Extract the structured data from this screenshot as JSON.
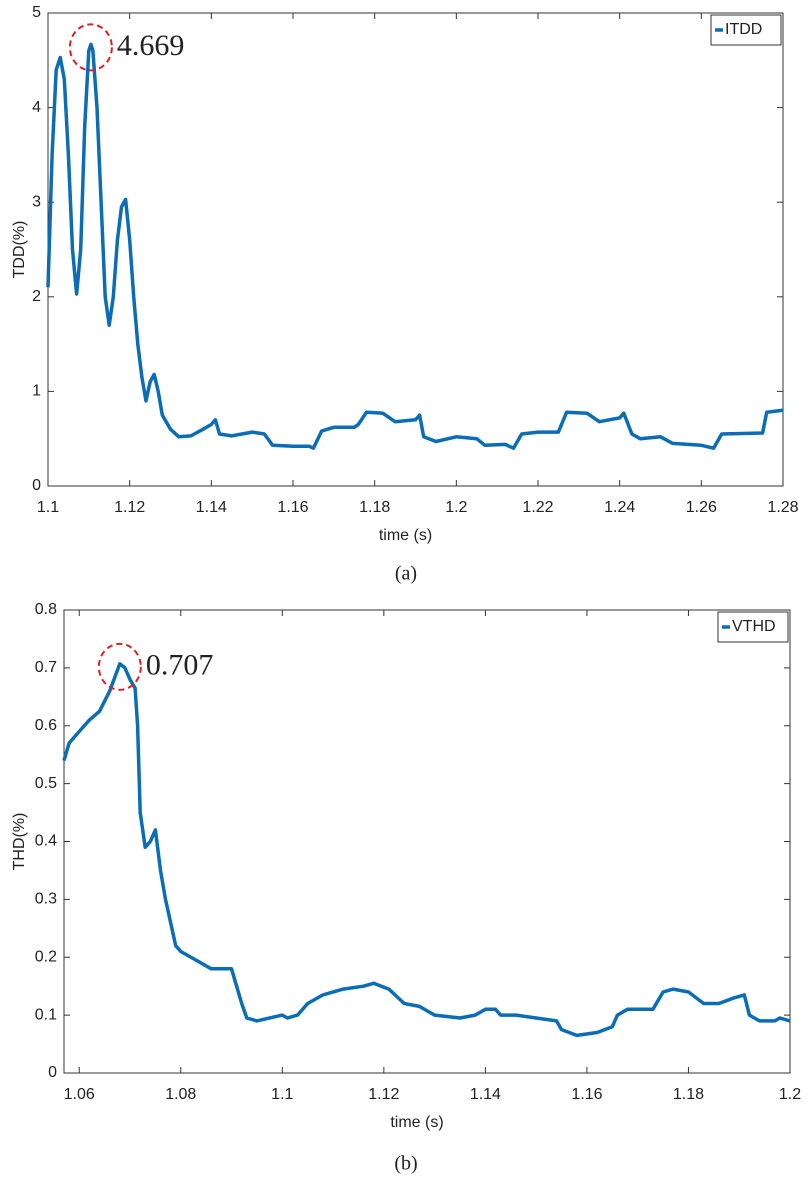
{
  "chart_data": [
    {
      "type": "line",
      "xlabel": "time (s)",
      "ylabel": "TDD(%)",
      "caption": "(a)",
      "annotation": "4.669",
      "legend": "upper right",
      "grid": false,
      "xlim": [
        1.1,
        1.28
      ],
      "xticks": [
        1.1,
        1.12,
        1.14,
        1.16,
        1.18,
        1.2,
        1.22,
        1.24,
        1.26,
        1.28
      ],
      "ylim": [
        0,
        5
      ],
      "yticks": [
        0,
        1,
        2,
        3,
        4,
        5
      ],
      "x": [
        1.1,
        1.101,
        1.102,
        1.103,
        1.104,
        1.105,
        1.106,
        1.107,
        1.108,
        1.109,
        1.11,
        1.1105,
        1.111,
        1.112,
        1.113,
        1.114,
        1.115,
        1.116,
        1.117,
        1.118,
        1.119,
        1.12,
        1.121,
        1.122,
        1.123,
        1.124,
        1.125,
        1.126,
        1.127,
        1.128,
        1.13,
        1.132,
        1.135,
        1.138,
        1.14,
        1.141,
        1.142,
        1.145,
        1.15,
        1.153,
        1.155,
        1.16,
        1.164,
        1.165,
        1.167,
        1.17,
        1.175,
        1.176,
        1.178,
        1.182,
        1.185,
        1.19,
        1.191,
        1.192,
        1.195,
        1.2,
        1.205,
        1.207,
        1.212,
        1.214,
        1.216,
        1.22,
        1.225,
        1.227,
        1.232,
        1.235,
        1.24,
        1.241,
        1.243,
        1.245,
        1.25,
        1.253,
        1.26,
        1.263,
        1.265,
        1.275,
        1.276,
        1.28
      ],
      "series": [
        {
          "name": "ITDD",
          "color": "#0a6db5",
          "values": [
            2.1,
            3.5,
            4.4,
            4.53,
            4.3,
            3.5,
            2.5,
            2.03,
            2.5,
            3.8,
            4.6,
            4.669,
            4.6,
            4.0,
            3.0,
            2.0,
            1.7,
            2.0,
            2.6,
            2.95,
            3.03,
            2.6,
            2.0,
            1.5,
            1.15,
            0.9,
            1.1,
            1.18,
            1.0,
            0.75,
            0.6,
            0.52,
            0.53,
            0.6,
            0.65,
            0.7,
            0.55,
            0.53,
            0.57,
            0.55,
            0.43,
            0.42,
            0.42,
            0.4,
            0.58,
            0.62,
            0.62,
            0.65,
            0.78,
            0.77,
            0.68,
            0.7,
            0.75,
            0.52,
            0.47,
            0.52,
            0.5,
            0.43,
            0.44,
            0.4,
            0.55,
            0.57,
            0.57,
            0.78,
            0.77,
            0.68,
            0.72,
            0.77,
            0.55,
            0.5,
            0.52,
            0.45,
            0.43,
            0.4,
            0.55,
            0.56,
            0.78,
            0.8
          ]
        }
      ]
    },
    {
      "type": "line",
      "xlabel": "time (s)",
      "ylabel": "THD(%)",
      "caption": "(b)",
      "annotation": "0.707",
      "legend": "upper right",
      "grid": false,
      "xlim": [
        1.057,
        1.2
      ],
      "xticks": [
        1.06,
        1.08,
        1.1,
        1.12,
        1.14,
        1.16,
        1.18,
        1.2
      ],
      "ylim": [
        0,
        0.8
      ],
      "yticks": [
        0,
        0.1,
        0.2,
        0.3,
        0.4,
        0.5,
        0.6,
        0.7,
        0.8
      ],
      "x": [
        1.057,
        1.058,
        1.06,
        1.062,
        1.064,
        1.066,
        1.068,
        1.069,
        1.07,
        1.071,
        1.0715,
        1.072,
        1.073,
        1.074,
        1.075,
        1.076,
        1.077,
        1.078,
        1.079,
        1.08,
        1.083,
        1.086,
        1.089,
        1.09,
        1.092,
        1.093,
        1.095,
        1.1,
        1.101,
        1.103,
        1.105,
        1.108,
        1.112,
        1.116,
        1.118,
        1.121,
        1.124,
        1.127,
        1.13,
        1.135,
        1.138,
        1.14,
        1.142,
        1.143,
        1.146,
        1.15,
        1.154,
        1.155,
        1.158,
        1.162,
        1.165,
        1.166,
        1.168,
        1.173,
        1.175,
        1.177,
        1.18,
        1.183,
        1.186,
        1.189,
        1.191,
        1.192,
        1.194,
        1.197,
        1.198,
        1.2
      ],
      "series": [
        {
          "name": "VTHD",
          "color": "#0a6db5",
          "values": [
            0.54,
            0.57,
            0.59,
            0.61,
            0.625,
            0.66,
            0.707,
            0.7,
            0.68,
            0.665,
            0.6,
            0.45,
            0.39,
            0.4,
            0.42,
            0.35,
            0.3,
            0.26,
            0.22,
            0.21,
            0.195,
            0.18,
            0.18,
            0.18,
            0.12,
            0.095,
            0.09,
            0.1,
            0.095,
            0.1,
            0.12,
            0.135,
            0.145,
            0.15,
            0.155,
            0.145,
            0.12,
            0.115,
            0.1,
            0.095,
            0.1,
            0.11,
            0.11,
            0.1,
            0.1,
            0.095,
            0.09,
            0.075,
            0.065,
            0.07,
            0.08,
            0.1,
            0.11,
            0.11,
            0.14,
            0.145,
            0.14,
            0.12,
            0.12,
            0.13,
            0.135,
            0.1,
            0.09,
            0.09,
            0.095,
            0.09
          ]
        }
      ]
    }
  ]
}
